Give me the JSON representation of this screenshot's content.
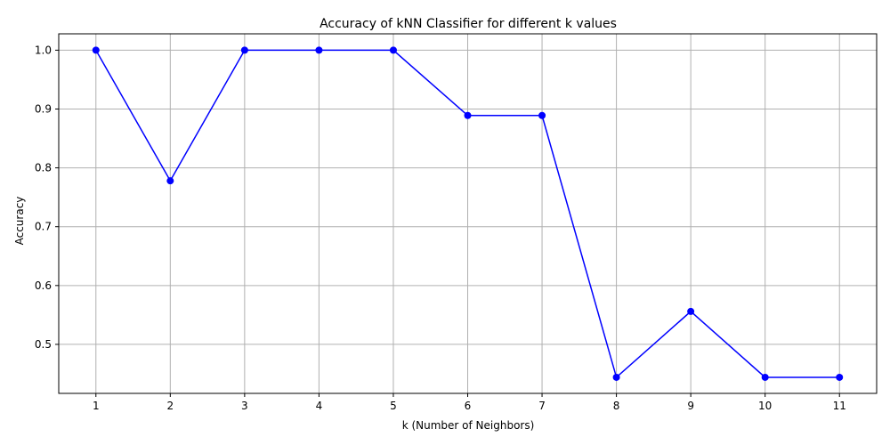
{
  "chart_data": {
    "type": "line",
    "title": "Accuracy of kNN Classifier for different k values",
    "xlabel": "k (Number of Neighbors)",
    "ylabel": "Accuracy",
    "x": [
      1,
      2,
      3,
      4,
      5,
      6,
      7,
      8,
      9,
      10,
      11
    ],
    "series": [
      {
        "values": [
          1.0,
          0.778,
          1.0,
          1.0,
          1.0,
          0.889,
          0.889,
          0.444,
          0.556,
          0.444,
          0.444
        ],
        "color": "#0000ff",
        "marker": "circle"
      }
    ],
    "xticks": [
      "1",
      "2",
      "3",
      "4",
      "5",
      "6",
      "7",
      "8",
      "9",
      "10",
      "11"
    ],
    "yticks": [
      "0.5",
      "0.6",
      "0.7",
      "0.8",
      "0.9",
      "1.0"
    ],
    "xlim": [
      0.5,
      11.5
    ],
    "ylim": [
      0.4167,
      1.0278
    ],
    "grid": true,
    "colors": {
      "grid": "#b0b0b0",
      "axes": "#000000"
    }
  }
}
